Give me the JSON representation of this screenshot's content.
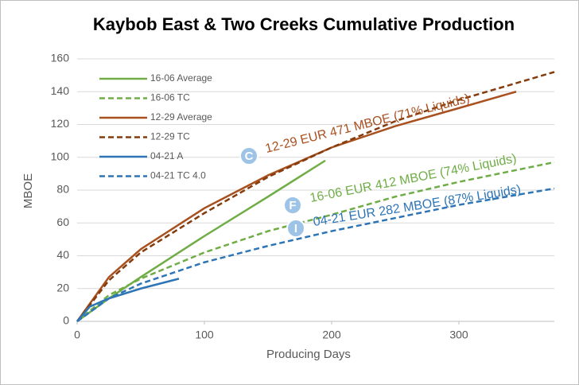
{
  "chart_data": {
    "type": "line",
    "title": "Kaybob East & Two Creeks Cumulative Production",
    "x_label": "Producing Days",
    "y_label": "MBOE",
    "xlim": [
      0,
      375
    ],
    "xticks": [
      0,
      100,
      200,
      300
    ],
    "ylim": [
      0,
      160
    ],
    "yticks": [
      0,
      20,
      40,
      60,
      80,
      100,
      120,
      140,
      160
    ],
    "grid": true,
    "legend": "top-left",
    "series": [
      {
        "name": "16-06 Average",
        "color": "#70ad47",
        "dashed": false,
        "x": [
          0,
          25,
          50,
          100,
          150,
          195
        ],
        "values": [
          0,
          14,
          27,
          52,
          76,
          98
        ]
      },
      {
        "name": "16-06 TC",
        "color": "#70ad47",
        "dashed": true,
        "x": [
          0,
          25,
          50,
          100,
          150,
          200,
          250,
          300,
          375
        ],
        "values": [
          0,
          16,
          26,
          42,
          55,
          65,
          76,
          85,
          97
        ]
      },
      {
        "name": "12-29 Average",
        "color": "#a9501f",
        "dashed": false,
        "x": [
          0,
          25,
          50,
          100,
          150,
          200,
          250,
          300,
          345
        ],
        "values": [
          0,
          27,
          44,
          69,
          89,
          106,
          119,
          130,
          140
        ]
      },
      {
        "name": "12-29 TC",
        "color": "#843c0c",
        "dashed": true,
        "x": [
          0,
          25,
          50,
          100,
          150,
          200,
          250,
          300,
          375
        ],
        "values": [
          0,
          25,
          42,
          66,
          88,
          106,
          122,
          135,
          152
        ]
      },
      {
        "name": "04-21 A",
        "color": "#2e75b6",
        "dashed": false,
        "x": [
          0,
          10,
          25,
          50,
          80
        ],
        "values": [
          0,
          9,
          14,
          20,
          26
        ]
      },
      {
        "name": "04-21 TC 4.0",
        "color": "#2e75b6",
        "dashed": true,
        "x": [
          0,
          25,
          50,
          100,
          150,
          200,
          250,
          300,
          375
        ],
        "values": [
          0,
          14,
          23,
          36,
          46,
          55,
          63,
          71,
          81
        ]
      }
    ],
    "annotations": [
      {
        "letter": "C",
        "text": "12-29 EUR 471 MBOE (71% Liquids)",
        "color": "#a9501f"
      },
      {
        "letter": "F",
        "text": "16-06 EUR 412 MBOE (74% Liquids)",
        "color": "#70ad47"
      },
      {
        "letter": "I",
        "text": "04-21 EUR 282 MBOE (87% Liquids)",
        "color": "#2e75b6"
      }
    ]
  }
}
